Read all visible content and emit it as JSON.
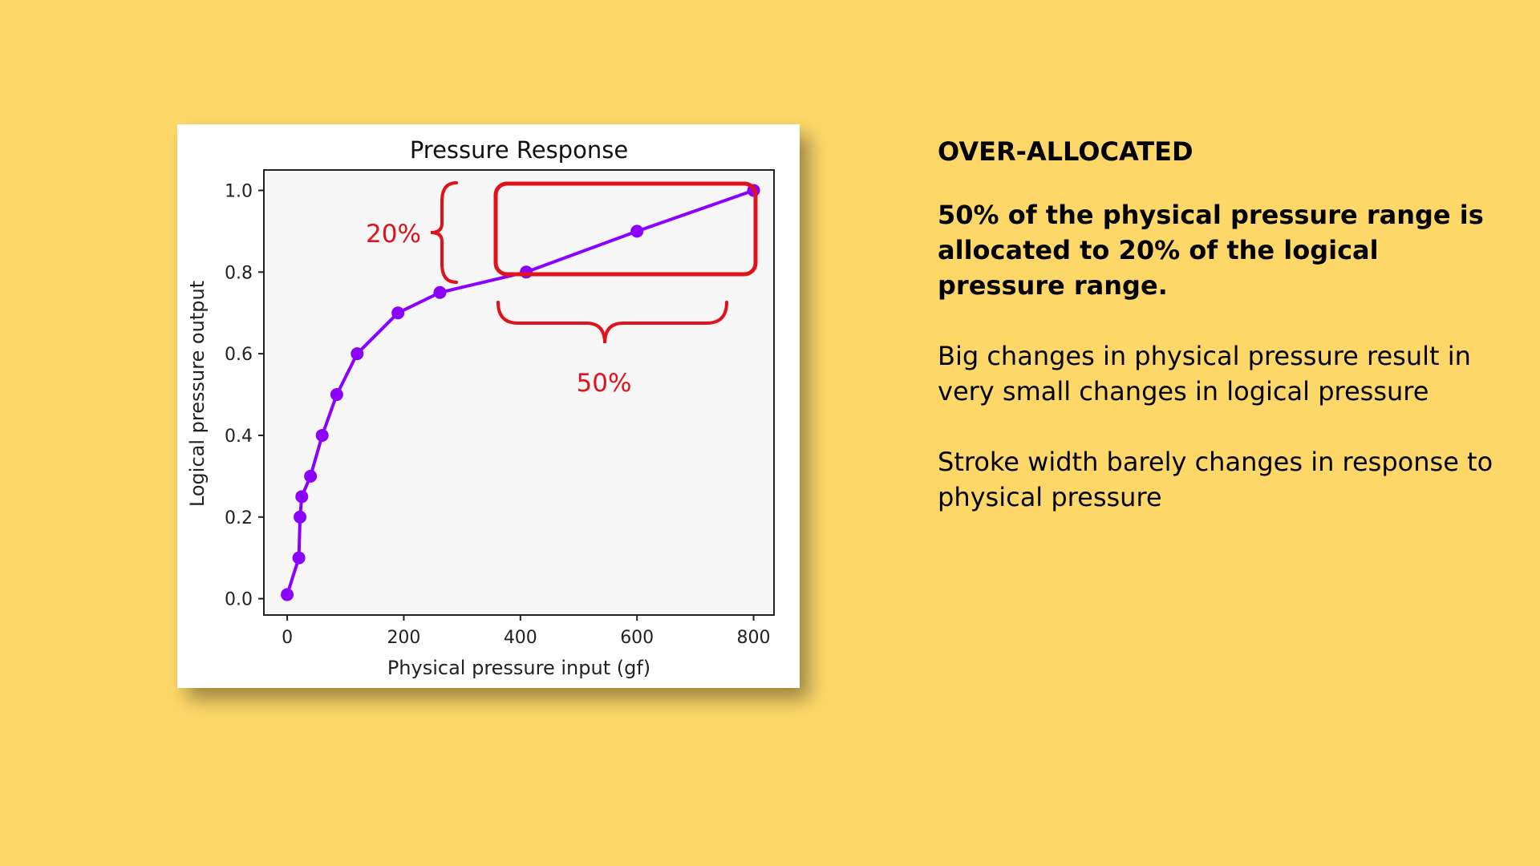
{
  "colors": {
    "background": "#FDD869",
    "series": "#8B00FF",
    "annotation": "#E0121C",
    "plot_bg": "#F7F7F7"
  },
  "chart_data": {
    "type": "line",
    "title": "Pressure Response",
    "xlabel": "Physical pressure input (gf)",
    "ylabel": "Logical pressure output",
    "xlim": [
      -40,
      835
    ],
    "ylim": [
      -0.04,
      1.05
    ],
    "xticks": [
      0,
      200,
      400,
      600,
      800
    ],
    "xtick_labels": [
      "0",
      "200",
      "400",
      "600",
      "800"
    ],
    "yticks": [
      0.0,
      0.2,
      0.4,
      0.6,
      0.8,
      1.0
    ],
    "ytick_labels": [
      "0.0",
      "0.2",
      "0.4",
      "0.6",
      "0.8",
      "1.0"
    ],
    "grid": false,
    "series": [
      {
        "x": [
          0,
          20,
          22,
          25,
          40,
          60,
          85,
          120,
          190,
          262,
          410,
          600,
          800
        ],
        "y": [
          0.01,
          0.1,
          0.2,
          0.25,
          0.3,
          0.4,
          0.5,
          0.6,
          0.7,
          0.75,
          0.8,
          0.9,
          1.0
        ],
        "marker": "circle"
      }
    ],
    "annotations": {
      "vertical_brace_label": "20%",
      "horizontal_brace_label": "50%",
      "highlight_box": "x 400-800, y 0.8-1.0"
    }
  },
  "text_panel": {
    "heading": "OVER-ALLOCATED",
    "bold_paragraph": "50% of the physical pressure range is allocated to 20% of the logical pressure range.",
    "paragraph_1": "Big changes in physical pressure result in very small changes in logical pressure",
    "paragraph_2": "Stroke width barely changes in response to physical pressure"
  }
}
